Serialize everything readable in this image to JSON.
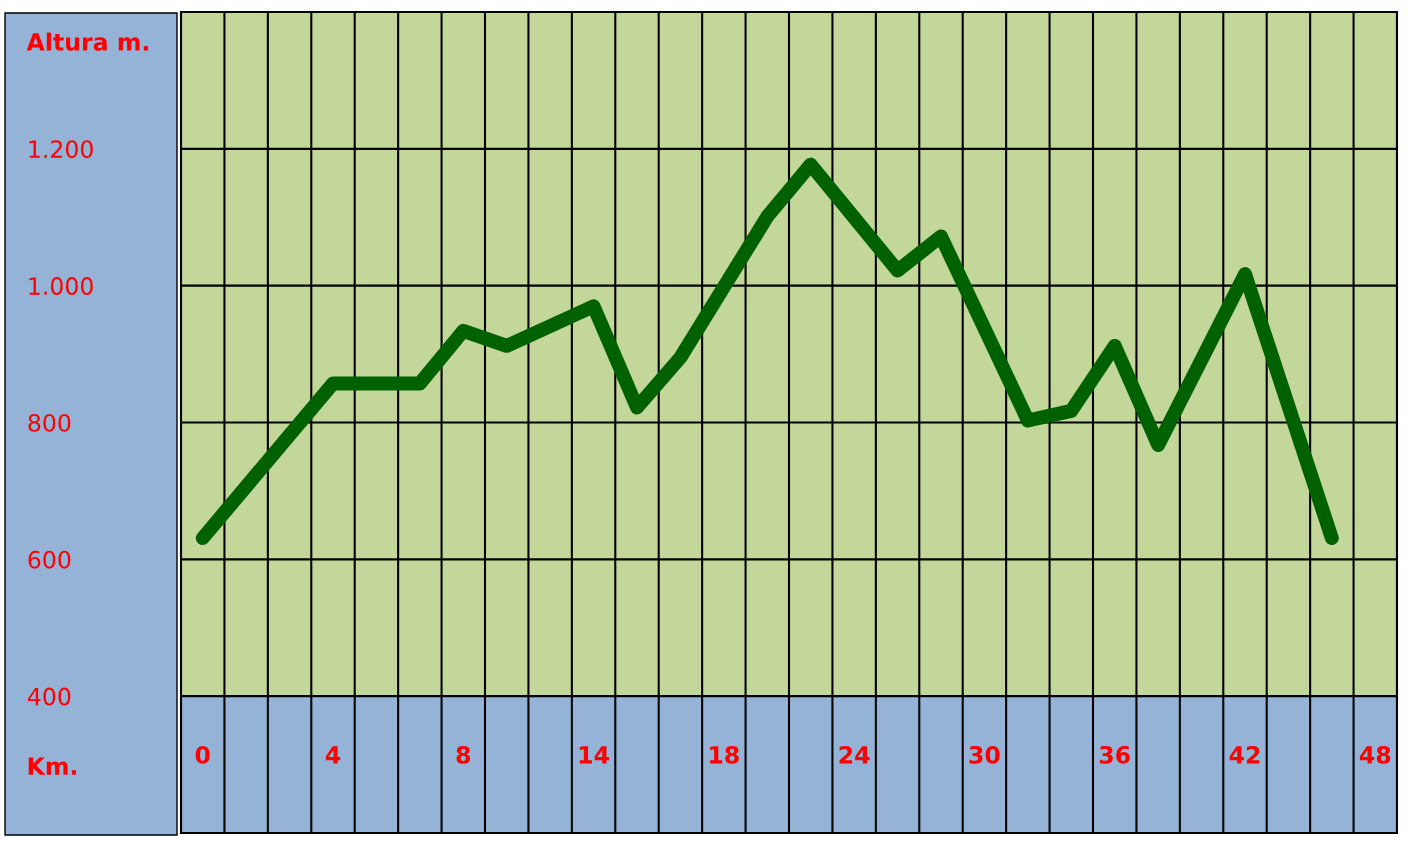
{
  "chart_data": {
    "type": "line",
    "xlabel": "Km.",
    "ylabel": "Altura m.",
    "categories": [
      "0",
      null,
      null,
      "4",
      null,
      null,
      "8",
      null,
      null,
      "14",
      null,
      null,
      "18",
      null,
      null,
      "24",
      null,
      null,
      "30",
      null,
      null,
      "36",
      null,
      null,
      "42",
      null,
      null,
      "48"
    ],
    "series": [
      {
        "color": "#006100",
        "values": [
          631,
          null,
          null,
          857,
          null,
          857,
          934,
          912,
          null,
          970,
          822,
          895,
          null,
          1101,
          1177,
          null,
          1022,
          1072,
          null,
          803,
          817,
          912,
          767,
          null,
          1017,
          null,
          631,
          null
        ]
      }
    ],
    "ylim": [
      200,
      1400
    ],
    "yticks": [
      {
        "value": 400,
        "label": "400"
      },
      {
        "value": 600,
        "label": "600"
      },
      {
        "value": 800,
        "label": "800"
      },
      {
        "value": 1000,
        "label": "1.000"
      },
      {
        "value": 1200,
        "label": "1.200"
      }
    ],
    "bands": [
      {
        "axis": "y",
        "from": 200,
        "to": 400,
        "color": "#95b3d7"
      }
    ],
    "grid": true,
    "line_style": "solid"
  }
}
